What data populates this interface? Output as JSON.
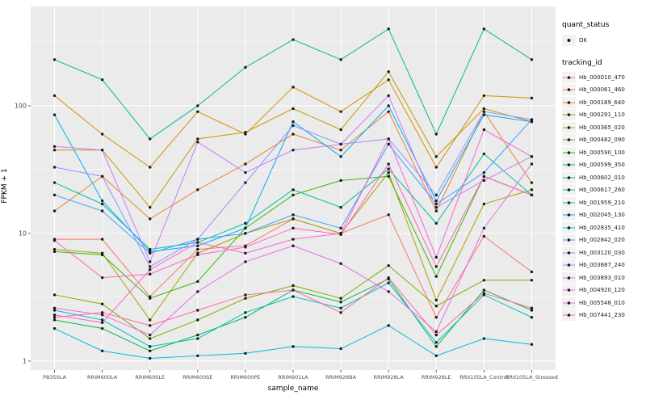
{
  "figure": {
    "background": "#FFFFFF",
    "panel_background": "#EBEBEB",
    "grid_color": "#FFFFFF",
    "tick_label_color": "#4D4D4D",
    "point_color": "#1a1a1a"
  },
  "legend": {
    "quant_status_title": "quant_status",
    "quant_status_value": "OK",
    "tracking_id_title": "tracking_id"
  },
  "chart_data": {
    "type": "line",
    "title": "",
    "xlabel": "sample_name",
    "ylabel": "FPKM + 1",
    "y_scale": "log10",
    "y_ticks": [
      1,
      10,
      100
    ],
    "y_range": [
      0.85,
      600
    ],
    "grid": true,
    "legend_position": "right",
    "point_shape": "filled-circle-black",
    "categories": [
      "PB350LA",
      "RRIM600LA",
      "RRIM600LE",
      "RRIM600SE",
      "RRIM600PE",
      "RRIM901LA",
      "RRIM928BA",
      "RRIM928LA",
      "RRIM928LE",
      "RRII105LA_Control",
      "RRII105LA_Stressed"
    ],
    "series": [
      {
        "name": "Hb_000010_470",
        "color": "#F8766D",
        "values": [
          9,
          9,
          3.2,
          7.5,
          8,
          13,
          10,
          14,
          2.2,
          9.5,
          5
        ]
      },
      {
        "name": "Hb_000061_460",
        "color": "#EA8331",
        "values": [
          15,
          28,
          13,
          22,
          35,
          60,
          45,
          90,
          15,
          90,
          25
        ]
      },
      {
        "name": "Hb_000189_640",
        "color": "#D89000",
        "values": [
          120,
          60,
          33,
          90,
          60,
          140,
          90,
          160,
          33,
          120,
          115
        ]
      },
      {
        "name": "Hb_000291_110",
        "color": "#C09B00",
        "values": [
          45,
          45,
          16,
          55,
          62,
          95,
          65,
          185,
          40,
          95,
          75
        ]
      },
      {
        "name": "Hb_000365_020",
        "color": "#A3A500",
        "values": [
          7.5,
          7,
          2.1,
          7,
          10,
          13,
          10,
          30,
          3,
          17,
          22
        ]
      },
      {
        "name": "Hb_000482_090",
        "color": "#7CAE00",
        "values": [
          3.3,
          2.8,
          1.5,
          2.1,
          3.1,
          3.9,
          3.1,
          5.6,
          2.7,
          4.3,
          4.3
        ]
      },
      {
        "name": "Hb_000590_100",
        "color": "#39B600",
        "values": [
          7.2,
          6.8,
          3.1,
          4.2,
          11,
          20,
          26,
          28,
          4.6,
          28,
          20
        ]
      },
      {
        "name": "Hb_000599_350",
        "color": "#00BB4E",
        "values": [
          2.1,
          1.8,
          1.2,
          1.6,
          2.2,
          3.6,
          2.9,
          4.4,
          1.3,
          3.6,
          2.5
        ]
      },
      {
        "name": "Hb_000602_010",
        "color": "#00BF7D",
        "values": [
          230,
          160,
          55,
          100,
          200,
          330,
          230,
          400,
          60,
          400,
          230
        ]
      },
      {
        "name": "Hb_000617_260",
        "color": "#00C1A3",
        "values": [
          25,
          17,
          7.5,
          8.5,
          12,
          22,
          16,
          32,
          12,
          42,
          20
        ]
      },
      {
        "name": "Hb_001959_210",
        "color": "#00BFC4",
        "values": [
          2.5,
          2.1,
          1.3,
          1.5,
          2.4,
          3.2,
          2.6,
          4.1,
          1.4,
          3.3,
          2.2
        ]
      },
      {
        "name": "Hb_002045_130",
        "color": "#00BAE0",
        "values": [
          1.8,
          1.2,
          1.05,
          1.1,
          1.15,
          1.3,
          1.25,
          1.9,
          1.1,
          1.5,
          1.35
        ]
      },
      {
        "name": "Hb_002835_410",
        "color": "#00B0F6",
        "values": [
          85,
          18,
          7.2,
          8,
          11,
          75,
          40,
          100,
          18,
          85,
          75
        ]
      },
      {
        "name": "Hb_002842_020",
        "color": "#35A2FF",
        "values": [
          20,
          15,
          7,
          9,
          10,
          14,
          11,
          50,
          17,
          30,
          78
        ]
      },
      {
        "name": "Hb_003120_030",
        "color": "#9590FF",
        "values": [
          33,
          28,
          5.5,
          9,
          25,
          70,
          50,
          55,
          20,
          90,
          78
        ]
      },
      {
        "name": "Hb_003687_240",
        "color": "#C77CFF",
        "values": [
          48,
          45,
          6,
          52,
          30,
          45,
          50,
          120,
          16,
          26,
          40
        ]
      },
      {
        "name": "Hb_003893_010",
        "color": "#E76BF3",
        "values": [
          2.6,
          2.3,
          1.6,
          3.5,
          6,
          8,
          5.8,
          3.5,
          1.7,
          11,
          35
        ]
      },
      {
        "name": "Hb_004920_120",
        "color": "#FA62DB",
        "values": [
          2.3,
          2,
          5.2,
          8.5,
          7,
          9,
          10,
          55,
          6.5,
          65,
          40
        ]
      },
      {
        "name": "Hb_005548_010",
        "color": "#FF62BC",
        "values": [
          8.8,
          4.5,
          4.8,
          6.8,
          7.8,
          11,
          9.8,
          35,
          5.5,
          28,
          20
        ]
      },
      {
        "name": "Hb_007441_230",
        "color": "#FF6A98",
        "values": [
          2.2,
          2.4,
          1.9,
          2.5,
          3.3,
          3.6,
          2.4,
          4.5,
          1.6,
          3.4,
          2.6
        ]
      }
    ]
  }
}
